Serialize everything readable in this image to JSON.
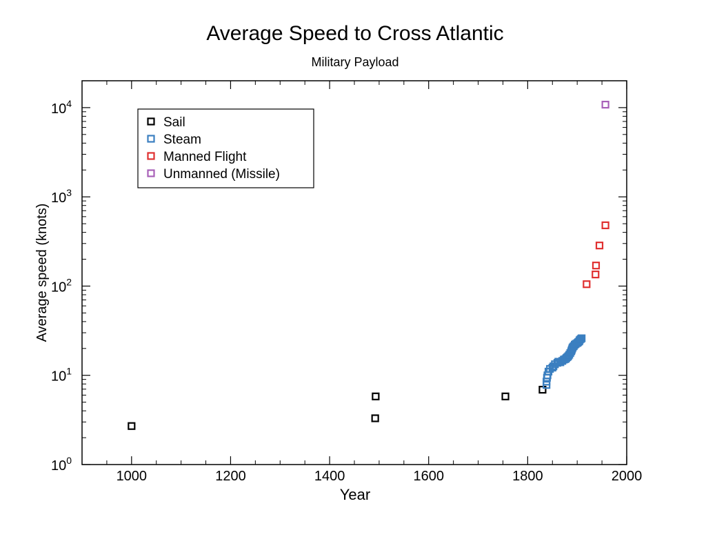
{
  "chart_data": {
    "type": "scatter",
    "title": "Average Speed to Cross Atlantic",
    "subtitle": "Military Payload",
    "xlabel": "Year",
    "ylabel": "Average speed (knots)",
    "xlim": [
      900,
      2000
    ],
    "ylim": [
      1,
      20000
    ],
    "yscale": "log",
    "x_ticks": [
      1000,
      1200,
      1400,
      1600,
      1800,
      2000
    ],
    "y_ticks": [
      {
        "value": 1,
        "base": "10",
        "exp": "0"
      },
      {
        "value": 10,
        "base": "10",
        "exp": "1"
      },
      {
        "value": 100,
        "base": "10",
        "exp": "2"
      },
      {
        "value": 1000,
        "base": "10",
        "exp": "3"
      },
      {
        "value": 10000,
        "base": "10",
        "exp": "4"
      }
    ],
    "legend_position": "top-left",
    "series": [
      {
        "name": "Sail",
        "color": "#000000",
        "points": [
          [
            1000,
            2.7
          ],
          [
            1492,
            3.3
          ],
          [
            1493,
            5.8
          ],
          [
            1755,
            5.8
          ],
          [
            1830,
            6.9
          ]
        ]
      },
      {
        "name": "Steam",
        "color": "#3b7fc0",
        "points": [
          [
            1838,
            7.8
          ],
          [
            1838,
            8.5
          ],
          [
            1839,
            9.4
          ],
          [
            1840,
            10.0
          ],
          [
            1842,
            11.0
          ],
          [
            1845,
            11.8
          ],
          [
            1850,
            12.2
          ],
          [
            1852,
            12.6
          ],
          [
            1855,
            13.3
          ],
          [
            1860,
            13.8
          ],
          [
            1862,
            14.2
          ],
          [
            1866,
            14.0
          ],
          [
            1870,
            14.5
          ],
          [
            1873,
            15.0
          ],
          [
            1876,
            15.2
          ],
          [
            1878,
            15.6
          ],
          [
            1880,
            16.0
          ],
          [
            1882,
            16.4
          ],
          [
            1884,
            17.0
          ],
          [
            1886,
            17.8
          ],
          [
            1888,
            18.6
          ],
          [
            1889,
            19.3
          ],
          [
            1890,
            20.0
          ],
          [
            1891,
            20.6
          ],
          [
            1893,
            21.2
          ],
          [
            1895,
            22.0
          ],
          [
            1897,
            22.5
          ],
          [
            1900,
            23.0
          ],
          [
            1902,
            23.5
          ],
          [
            1904,
            24.0
          ],
          [
            1905,
            24.8
          ],
          [
            1907,
            25.5
          ],
          [
            1909,
            26.0
          ]
        ]
      },
      {
        "name": "Manned Flight",
        "color": "#e03030",
        "points": [
          [
            1919,
            105
          ],
          [
            1937,
            135
          ],
          [
            1938,
            170
          ],
          [
            1945,
            285
          ],
          [
            1957,
            480
          ]
        ]
      },
      {
        "name": "Unmanned (Missile)",
        "color": "#a860b8",
        "points": [
          [
            1957,
            10800
          ]
        ]
      }
    ]
  }
}
